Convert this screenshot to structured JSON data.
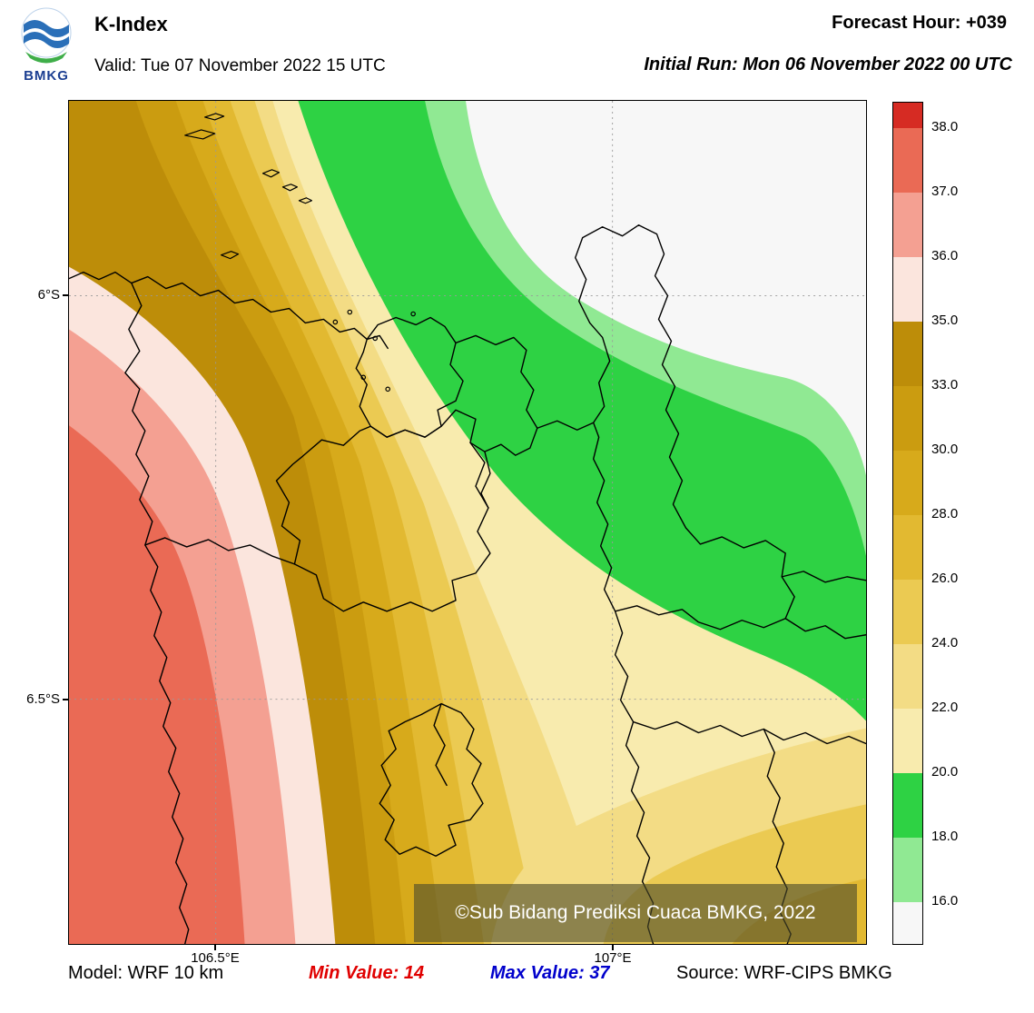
{
  "header": {
    "logo_text": "BMKG",
    "title": "K-Index",
    "valid": "Valid: Tue 07 November 2022 15 UTC",
    "forecast_hour": "Forecast Hour: +039",
    "initial_run": "Initial Run: Mon 06 November 2022 00 UTC"
  },
  "map": {
    "watermark": "©Sub Bidang Prediksi Cuaca BMKG, 2022"
  },
  "footer": {
    "model": "Model: WRF 10 km",
    "min": "Min Value: 14",
    "max": "Max Value: 37",
    "source": "Source: WRF-CIPS BMKG"
  },
  "chart_data": {
    "type": "heatmap",
    "title": "K-Index",
    "valid_time": "Tue 07 November 2022 15 UTC",
    "initial_run": "Mon 06 November 2022 00 UTC",
    "forecast_hour": "+039",
    "model": "WRF 10 km",
    "source": "WRF-CIPS BMKG",
    "min_value": 14,
    "max_value": 37,
    "x_axis": {
      "ticks": [
        "106.5°E",
        "107°E"
      ]
    },
    "y_axis": {
      "ticks": [
        "6°S",
        "6.5°S"
      ]
    },
    "grid": "dotted",
    "legend_position": "right-colorbar",
    "colorbar": {
      "tick_labels": [
        "38.0",
        "37.0",
        "36.0",
        "35.0",
        "33.0",
        "30.0",
        "28.0",
        "26.0",
        "24.0",
        "22.0",
        "20.0",
        "18.0",
        "16.0"
      ],
      "cell_colors_top_to_bottom": [
        "#d62b23",
        "#ea6a55",
        "#f4a092",
        "#fbe5dd",
        "#bd8d09",
        "#cb9c10",
        "#d7aa1b",
        "#e2b931",
        "#ebca52",
        "#f3dc85",
        "#f8ebae",
        "#2ed244",
        "#90e993",
        "#f7f7f7"
      ]
    },
    "field_pattern": "Maximum (~37) in the southwest corner decreasing northeastward to a minimum (<16) in the northeast; values rise again (~24-28) toward the southeast corner"
  },
  "palette": {
    "band_lt16": "#f7f7f7",
    "band_16_18": "#90e993",
    "band_18_20": "#2ed244",
    "band_20_22": "#f8ebae",
    "band_22_24": "#f3dc85",
    "band_24_26": "#ebca52",
    "band_26_28": "#e2b931",
    "band_28_30": "#d7aa1b",
    "band_30_33": "#cb9c10",
    "band_33_35": "#bd8d09",
    "band_35_36": "#fbe5dd",
    "band_36_37": "#f4a092",
    "band_37_38": "#ea6a55"
  }
}
